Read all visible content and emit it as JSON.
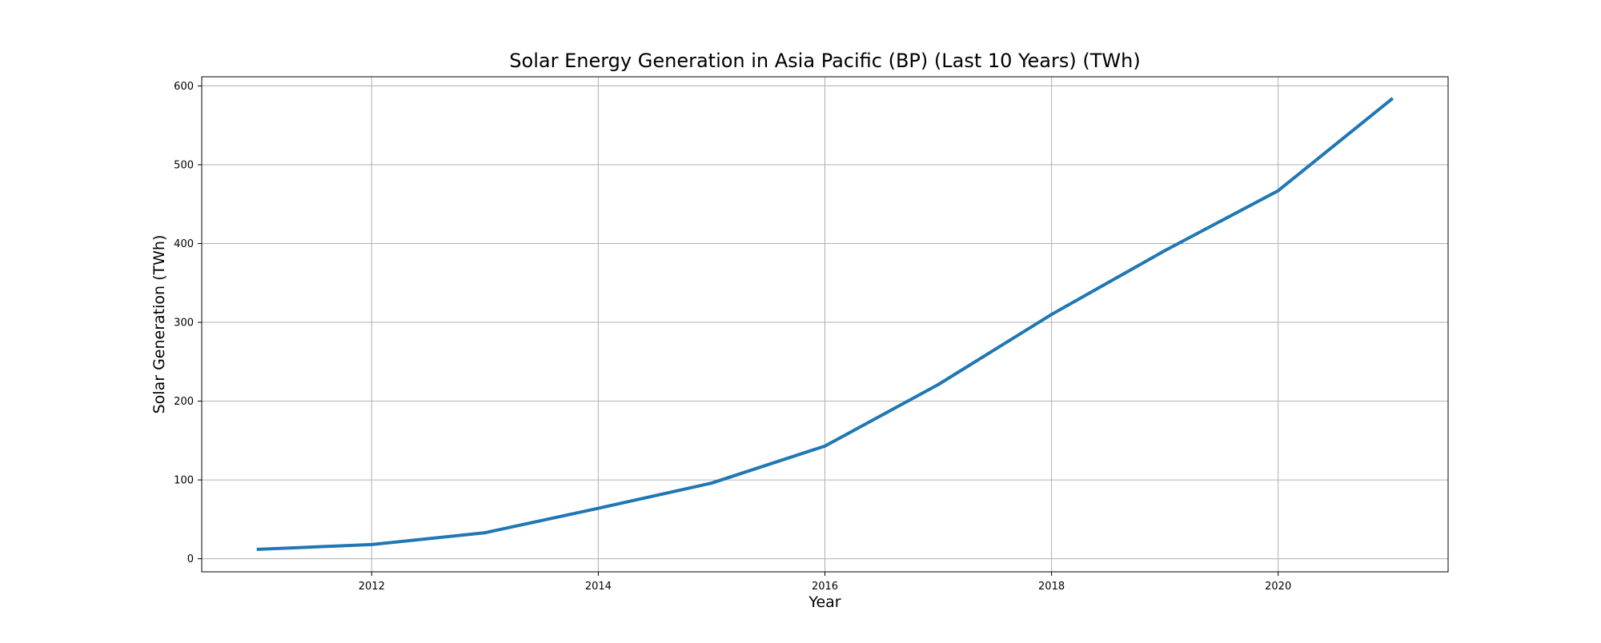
{
  "chart_data": {
    "type": "line",
    "title": "Solar Energy Generation in Asia Pacific (BP) (Last 10 Years) (TWh)",
    "xlabel": "Year",
    "ylabel": "Solar Generation (TWh)",
    "x": [
      2011,
      2012,
      2013,
      2014,
      2015,
      2016,
      2017,
      2018,
      2019,
      2020,
      2021
    ],
    "series": [
      {
        "values": [
          12,
          18,
          33,
          64,
          96,
          143,
          221,
          310,
          391,
          467,
          583
        ]
      }
    ],
    "xlim": [
      2010.5,
      2021.5
    ],
    "ylim": [
      -16.6,
      611.6
    ],
    "xticks": [
      2012,
      2014,
      2016,
      2018,
      2020
    ],
    "xtick_labels": [
      "2012",
      "2014",
      "2016",
      "2018",
      "2020"
    ],
    "yticks": [
      0,
      100,
      200,
      300,
      400,
      500,
      600
    ],
    "ytick_labels": [
      "0",
      "100",
      "200",
      "300",
      "400",
      "500",
      "600"
    ],
    "grid": true,
    "line_color": "#1f77b4",
    "grid_color": "#b0b0b0"
  }
}
